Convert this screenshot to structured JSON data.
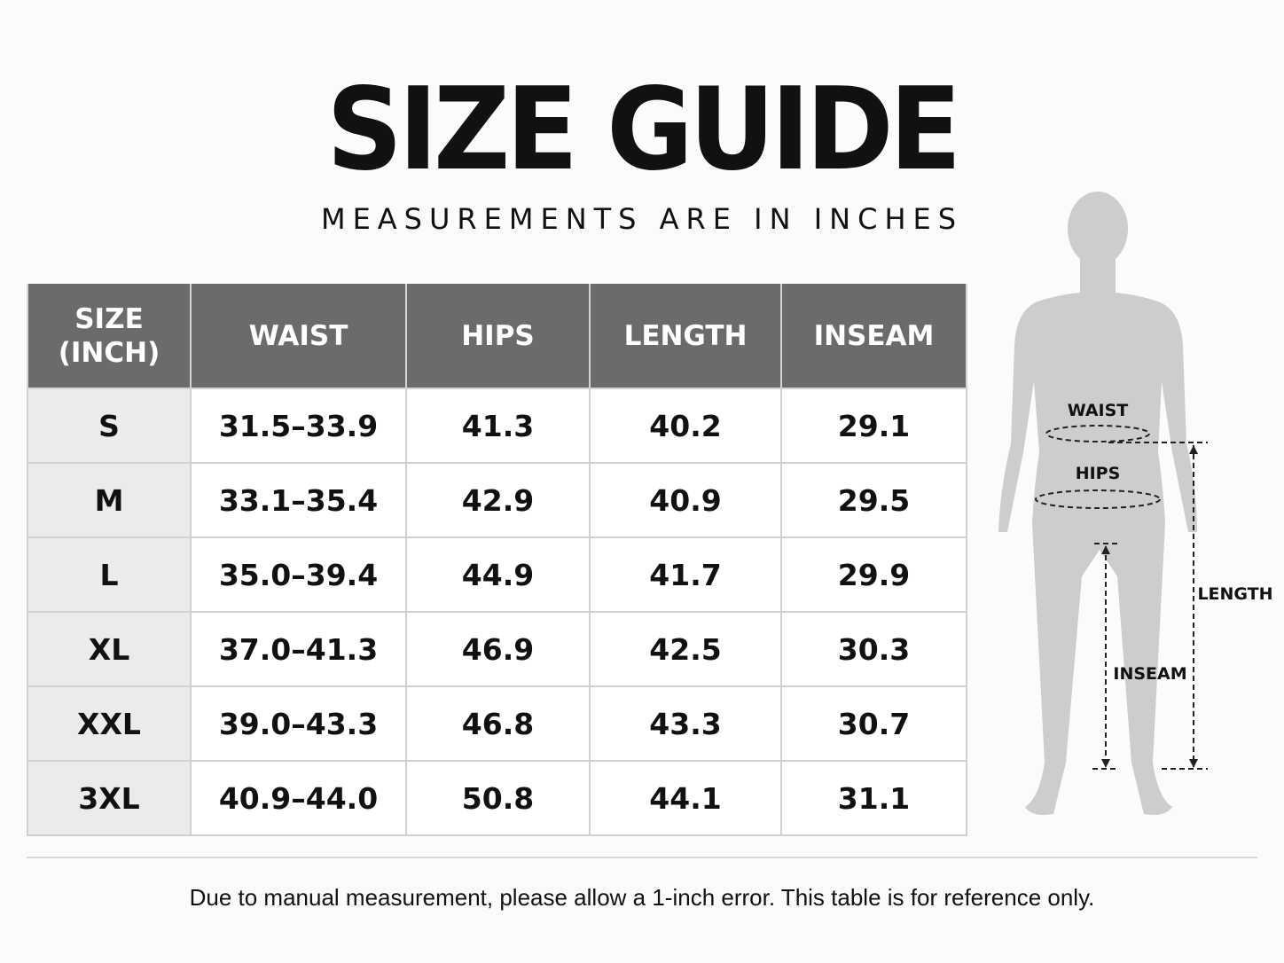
{
  "header": {
    "title": "SIZE GUIDE",
    "subtitle": "MEASUREMENTS ARE IN INCHES"
  },
  "table": {
    "columns": [
      "SIZE\n(INCH)",
      "WAIST",
      "HIPS",
      "LENGTH",
      "INSEAM"
    ],
    "rows": [
      [
        "S",
        "31.5–33.9",
        "41.3",
        "40.2",
        "29.1"
      ],
      [
        "M",
        "33.1–35.4",
        "42.9",
        "40.9",
        "29.5"
      ],
      [
        "L",
        "35.0–39.4",
        "44.9",
        "41.7",
        "29.9"
      ],
      [
        "XL",
        "37.0–41.3",
        "46.9",
        "42.5",
        "30.3"
      ],
      [
        "XXL",
        "39.0–43.3",
        "46.8",
        "43.3",
        "30.7"
      ],
      [
        "3XL",
        "40.9–44.0",
        "50.8",
        "44.1",
        "31.1"
      ]
    ]
  },
  "figure": {
    "labels": {
      "waist": "WAIST",
      "hips": "HIPS",
      "length": "LENGTH",
      "inseam": "INSEAM"
    }
  },
  "footer": {
    "note": "Due to manual measurement, please allow a 1-inch error. This table is for reference only."
  }
}
